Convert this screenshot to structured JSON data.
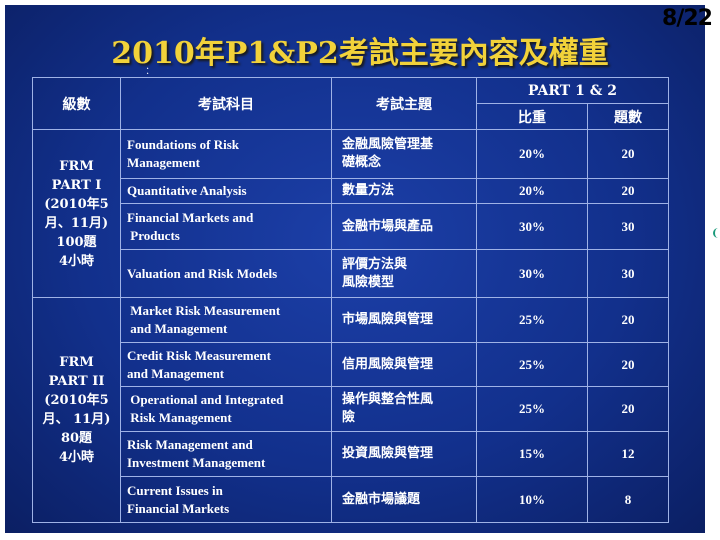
{
  "page_number": "8/22",
  "title": "2010年P1&P2考試主要內容及權重",
  "headers": {
    "level": "級數",
    "subject": "考試科目",
    "topic": "考試主題",
    "part": "PART 1 & 2",
    "weight": "比重",
    "count": "題數"
  },
  "groups": [
    {
      "level_lines": [
        "FRM",
        "PART I",
        "(2010年5",
        "月、11月)",
        "100題",
        "4小時"
      ],
      "rows": [
        {
          "subject": [
            "Foundations of Risk",
            "Management"
          ],
          "topic": [
            "金融風險管理基",
            "礎概念"
          ],
          "weight": "20%",
          "count": "20"
        },
        {
          "subject": [
            "Quantitative Analysis"
          ],
          "topic": [
            "數量方法"
          ],
          "weight": "20%",
          "count": "20"
        },
        {
          "subject": [
            "Financial Markets and",
            " Products"
          ],
          "topic": [
            "金融市場與產品"
          ],
          "weight": "30%",
          "count": "30"
        },
        {
          "subject": [
            "Valuation and Risk Models"
          ],
          "topic": [
            "評價方法與",
            "風險模型"
          ],
          "weight": "30%",
          "count": "30"
        }
      ]
    },
    {
      "level_lines": [
        "FRM",
        "PART II",
        "(2010年5",
        "月、 11月)",
        "80題",
        "4小時"
      ],
      "rows": [
        {
          "subject": [
            " Market Risk Measurement",
            " and Management"
          ],
          "topic": [
            "市場風險與管理"
          ],
          "weight": "25%",
          "count": "20"
        },
        {
          "subject": [
            "Credit Risk Measurement",
            "and Management"
          ],
          "topic": [
            "信用風險與管理"
          ],
          "weight": "25%",
          "count": "20"
        },
        {
          "subject": [
            " Operational and Integrated",
            " Risk Management"
          ],
          "topic": [
            "操作與整合性風",
            "險"
          ],
          "weight": "25%",
          "count": "20"
        },
        {
          "subject": [
            "Risk Management and",
            "Investment Management"
          ],
          "topic": [
            "投資風險與管理"
          ],
          "weight": "15%",
          "count": "12"
        },
        {
          "subject": [
            "Current Issues in",
            "Financial Markets"
          ],
          "topic": [
            "金融市場議題"
          ],
          "weight": "10%",
          "count": "8"
        }
      ]
    }
  ]
}
